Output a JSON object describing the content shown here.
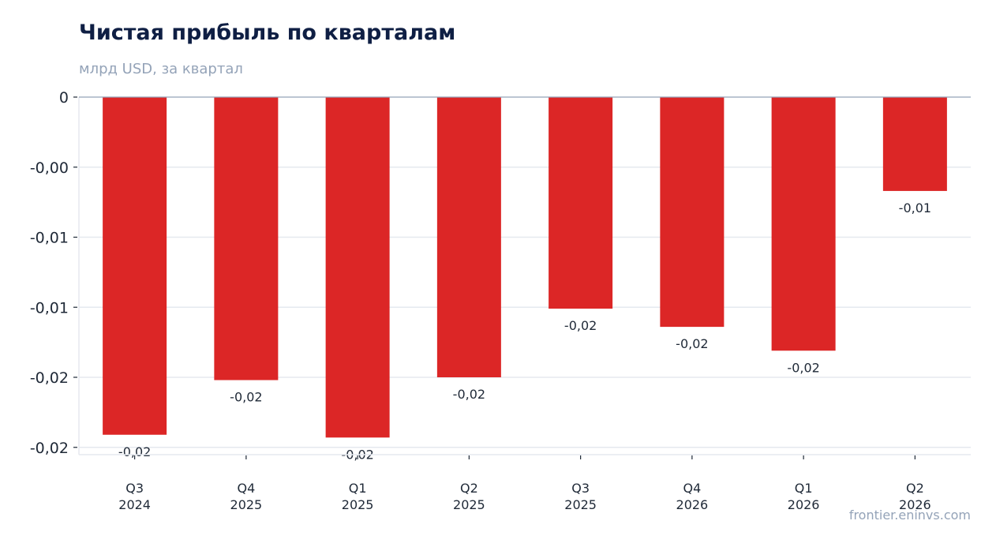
{
  "header": {
    "title": "Чистая прибыль по кварталам",
    "subtitle": "млрд USD, за квартал"
  },
  "watermark": "frontier.eninvs.com",
  "chart_data": {
    "type": "bar",
    "title": "Чистая прибыль по кварталам",
    "subtitle": "млрд USD, за квартал",
    "categories": [
      [
        "Q3",
        "2024"
      ],
      [
        "Q4",
        "2025"
      ],
      [
        "Q1",
        "2025"
      ],
      [
        "Q2",
        "2025"
      ],
      [
        "Q3",
        "2025"
      ],
      [
        "Q4",
        "2026"
      ],
      [
        "Q1",
        "2026"
      ],
      [
        "Q2",
        "2026"
      ]
    ],
    "values": [
      -0.0241,
      -0.0202,
      -0.0243,
      -0.02,
      -0.0151,
      -0.0164,
      -0.0181,
      -0.0067
    ],
    "data_labels": [
      "-0,02",
      "-0,02",
      "-0,02",
      "-0,02",
      "-0,02",
      "-0,02",
      "-0,02",
      "-0,01"
    ],
    "y_ticks": [
      {
        "value": 0,
        "label": "0"
      },
      {
        "value": -0.005,
        "label": "-0,00"
      },
      {
        "value": -0.01,
        "label": "-0,01"
      },
      {
        "value": -0.015,
        "label": "-0,01"
      },
      {
        "value": -0.02,
        "label": "-0,02"
      },
      {
        "value": -0.025,
        "label": "-0,02"
      }
    ],
    "ylim": [
      -0.0255,
      0
    ],
    "grid": true,
    "legend": "none",
    "bar_color": "#dc2626",
    "grid_color": "#e5e9ef",
    "axis_color": "#94a3b8"
  }
}
